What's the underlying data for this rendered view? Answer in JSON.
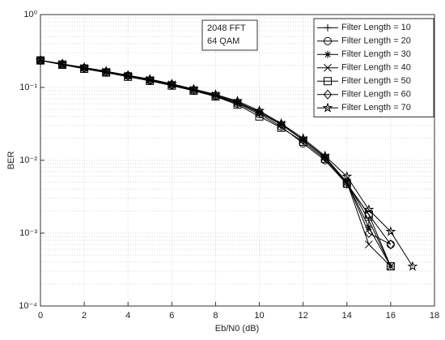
{
  "chart_data": {
    "type": "line",
    "xlabel": "Eb/N0 (dB)",
    "ylabel": "BER",
    "annotation": [
      "2048 FFT",
      "64 QAM"
    ],
    "xlim": [
      0,
      18
    ],
    "xticks": [
      0,
      2,
      4,
      6,
      8,
      10,
      12,
      14,
      16,
      18
    ],
    "ylim": [
      0.0001,
      1
    ],
    "log_y": true,
    "grid": true,
    "minor_grid": true,
    "legend": "northeast",
    "yticks": [
      {
        "value": 1,
        "label": "10⁰"
      },
      {
        "value": 0.1,
        "label": "10⁻¹"
      },
      {
        "value": 0.01,
        "label": "10⁻²"
      },
      {
        "value": 0.001,
        "label": "10⁻³"
      },
      {
        "value": 0.0001,
        "label": "10⁻⁴"
      }
    ],
    "series": [
      {
        "name": "Filter Length = 10",
        "color": "#000000",
        "marker": "plus",
        "x": [
          0,
          1,
          2,
          3,
          4,
          5,
          6,
          7,
          8,
          9,
          10,
          11,
          12,
          13,
          14,
          15,
          16
        ],
        "values": [
          0.235,
          0.21,
          0.185,
          0.165,
          0.145,
          0.127,
          0.11,
          0.093,
          0.078,
          0.062,
          0.045,
          0.031,
          0.019,
          0.011,
          0.005,
          0.0015,
          0.00035
        ]
      },
      {
        "name": "Filter Length = 20",
        "color": "#000000",
        "marker": "circle",
        "x": [
          0,
          1,
          2,
          3,
          4,
          5,
          6,
          7,
          8,
          9,
          10,
          11,
          12,
          13,
          14,
          15,
          16
        ],
        "values": [
          0.235,
          0.205,
          0.185,
          0.16,
          0.145,
          0.125,
          0.108,
          0.09,
          0.076,
          0.06,
          0.043,
          0.029,
          0.017,
          0.01,
          0.0047,
          0.0018,
          0.0007
        ]
      },
      {
        "name": "Filter Length = 30",
        "color": "#000000",
        "marker": "asterisk",
        "x": [
          0,
          1,
          2,
          3,
          4,
          5,
          6,
          7,
          8,
          9,
          10,
          11,
          12,
          13,
          14,
          15,
          16
        ],
        "values": [
          0.235,
          0.21,
          0.185,
          0.165,
          0.145,
          0.127,
          0.11,
          0.092,
          0.078,
          0.062,
          0.046,
          0.031,
          0.019,
          0.011,
          0.005,
          0.0012,
          0.00035
        ]
      },
      {
        "name": "Filter Length = 40",
        "color": "#000000",
        "marker": "x",
        "x": [
          0,
          1,
          2,
          3,
          4,
          5,
          6,
          7,
          8,
          9,
          10,
          11,
          12,
          13,
          14,
          15,
          16
        ],
        "values": [
          0.235,
          0.21,
          0.185,
          0.165,
          0.145,
          0.127,
          0.11,
          0.093,
          0.078,
          0.062,
          0.045,
          0.031,
          0.019,
          0.011,
          0.005,
          0.0007,
          0.00035
        ]
      },
      {
        "name": "Filter Length = 50",
        "color": "#000000",
        "marker": "square",
        "x": [
          0,
          1,
          2,
          3,
          4,
          5,
          6,
          7,
          8,
          9,
          10,
          11,
          12,
          13,
          14,
          15,
          16
        ],
        "values": [
          0.235,
          0.205,
          0.18,
          0.16,
          0.14,
          0.123,
          0.106,
          0.09,
          0.075,
          0.058,
          0.04,
          0.028,
          0.018,
          0.0105,
          0.0048,
          0.0018,
          0.00035
        ]
      },
      {
        "name": "Filter Length = 60",
        "color": "#000000",
        "marker": "diamond",
        "x": [
          0,
          1,
          2,
          3,
          4,
          5,
          6,
          7,
          8,
          9,
          10,
          11,
          12,
          13,
          14,
          15,
          16
        ],
        "values": [
          0.235,
          0.21,
          0.185,
          0.165,
          0.145,
          0.127,
          0.11,
          0.093,
          0.078,
          0.063,
          0.046,
          0.031,
          0.019,
          0.011,
          0.005,
          0.001,
          0.0007
        ]
      },
      {
        "name": "Filter Length = 70",
        "color": "#000000",
        "marker": "star",
        "x": [
          0,
          1,
          2,
          3,
          4,
          5,
          6,
          7,
          8,
          9,
          10,
          11,
          12,
          13,
          14,
          15,
          16,
          17
        ],
        "values": [
          0.235,
          0.21,
          0.188,
          0.167,
          0.147,
          0.13,
          0.112,
          0.095,
          0.08,
          0.065,
          0.048,
          0.032,
          0.02,
          0.0115,
          0.006,
          0.0021,
          0.00105,
          0.00035
        ]
      }
    ]
  }
}
